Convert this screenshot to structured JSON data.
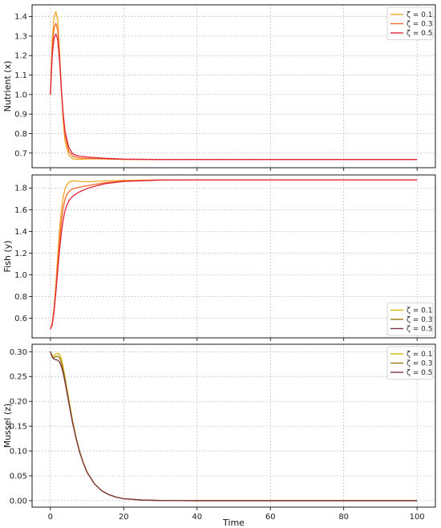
{
  "chart_data": [
    {
      "type": "line",
      "ylabel": "Nutrient (x)",
      "xlim": [
        -5,
        105
      ],
      "ylim": [
        0.625,
        1.46
      ],
      "yticks": [
        0.7,
        0.8,
        0.9,
        1.0,
        1.1,
        1.2,
        1.3,
        1.4
      ],
      "ytick_labels": [
        "0.7",
        "0.8",
        "0.9",
        "1.0",
        "1.1",
        "1.2",
        "1.3",
        "1.4"
      ],
      "grid": true,
      "legend_position": "top-right",
      "series": [
        {
          "name": "ζ = 0.1",
          "color": "#f5a623",
          "x": [
            0,
            0.5,
            1,
            1.5,
            2,
            2.5,
            3,
            3.5,
            4,
            5,
            6,
            7,
            8,
            10,
            12,
            15,
            20,
            30,
            40,
            50,
            60,
            70,
            80,
            90,
            100
          ],
          "y": [
            1.0,
            1.28,
            1.4,
            1.425,
            1.38,
            1.22,
            1.02,
            0.86,
            0.76,
            0.69,
            0.672,
            0.668,
            0.668,
            0.67,
            0.671,
            0.67,
            0.668,
            0.667,
            0.667,
            0.667,
            0.667,
            0.667,
            0.667,
            0.667,
            0.667
          ]
        },
        {
          "name": "ζ = 0.3",
          "color": "#f26b2a",
          "x": [
            0,
            0.5,
            1,
            1.5,
            2,
            2.5,
            3,
            3.5,
            4,
            5,
            6,
            7,
            8,
            10,
            12,
            15,
            20,
            30,
            40,
            50,
            60,
            70,
            80,
            90,
            100
          ],
          "y": [
            1.0,
            1.24,
            1.34,
            1.365,
            1.33,
            1.2,
            1.03,
            0.89,
            0.79,
            0.71,
            0.685,
            0.678,
            0.675,
            0.673,
            0.672,
            0.67,
            0.668,
            0.667,
            0.667,
            0.667,
            0.667,
            0.667,
            0.667,
            0.667,
            0.667
          ]
        },
        {
          "name": "ζ = 0.5",
          "color": "#e0263b",
          "x": [
            0,
            0.5,
            1,
            1.5,
            2,
            2.5,
            3,
            3.5,
            4,
            5,
            6,
            7,
            8,
            10,
            12,
            15,
            20,
            30,
            40,
            50,
            60,
            70,
            80,
            90,
            100
          ],
          "y": [
            1.0,
            1.2,
            1.29,
            1.31,
            1.28,
            1.17,
            1.02,
            0.9,
            0.81,
            0.73,
            0.698,
            0.688,
            0.684,
            0.68,
            0.677,
            0.673,
            0.669,
            0.667,
            0.667,
            0.667,
            0.667,
            0.667,
            0.667,
            0.667,
            0.667
          ]
        }
      ]
    },
    {
      "type": "line",
      "ylabel": "Fish (y)",
      "xlim": [
        -5,
        105
      ],
      "ylim": [
        0.42,
        1.92
      ],
      "yticks": [
        0.6,
        0.8,
        1.0,
        1.2,
        1.4,
        1.6,
        1.8
      ],
      "ytick_labels": [
        "0.6",
        "0.8",
        "1.0",
        "1.2",
        "1.4",
        "1.6",
        "1.8"
      ],
      "grid": true,
      "legend_position": "bottom-right",
      "series": [
        {
          "name": "ζ = 0.1",
          "color": "#f5a623",
          "x": [
            0,
            0.5,
            1,
            1.5,
            2,
            2.5,
            3,
            3.5,
            4,
            4.5,
            5,
            5.5,
            6,
            7,
            8,
            10,
            12,
            15,
            20,
            30,
            40,
            50,
            60,
            70,
            80,
            90,
            100
          ],
          "y": [
            0.5,
            0.56,
            0.7,
            0.92,
            1.18,
            1.42,
            1.6,
            1.72,
            1.79,
            1.83,
            1.85,
            1.86,
            1.865,
            1.865,
            1.86,
            1.858,
            1.86,
            1.865,
            1.87,
            1.875,
            1.875,
            1.875,
            1.875,
            1.875,
            1.875,
            1.875,
            1.875
          ]
        },
        {
          "name": "ζ = 0.3",
          "color": "#f26b2a",
          "x": [
            0,
            0.5,
            1,
            1.5,
            2,
            2.5,
            3,
            3.5,
            4,
            4.5,
            5,
            5.5,
            6,
            7,
            8,
            10,
            12,
            15,
            20,
            30,
            40,
            50,
            60,
            70,
            80,
            90,
            100
          ],
          "y": [
            0.5,
            0.55,
            0.68,
            0.88,
            1.1,
            1.32,
            1.49,
            1.62,
            1.7,
            1.74,
            1.765,
            1.78,
            1.79,
            1.8,
            1.808,
            1.82,
            1.832,
            1.848,
            1.865,
            1.874,
            1.875,
            1.875,
            1.875,
            1.875,
            1.875,
            1.875,
            1.875
          ]
        },
        {
          "name": "ζ = 0.5",
          "color": "#e0263b",
          "x": [
            0,
            0.5,
            1,
            1.5,
            2,
            2.5,
            3,
            3.5,
            4,
            4.5,
            5,
            5.5,
            6,
            7,
            8,
            10,
            12,
            15,
            20,
            30,
            40,
            50,
            60,
            70,
            80,
            90,
            100
          ],
          "y": [
            0.5,
            0.54,
            0.66,
            0.84,
            1.04,
            1.23,
            1.39,
            1.51,
            1.59,
            1.64,
            1.68,
            1.705,
            1.72,
            1.745,
            1.765,
            1.795,
            1.815,
            1.84,
            1.86,
            1.872,
            1.875,
            1.875,
            1.875,
            1.875,
            1.875,
            1.875,
            1.875
          ]
        }
      ],
      "legend_entries": [
        {
          "name": "ζ = 0.1",
          "color": "#d4b800"
        },
        {
          "name": "ζ = 0.3",
          "color": "#9a7a12"
        },
        {
          "name": "ζ = 0.5",
          "color": "#7a3340"
        }
      ]
    },
    {
      "type": "line",
      "ylabel": "Mussel (z)",
      "xlabel": "Time",
      "xlim": [
        -5,
        105
      ],
      "ylim": [
        -0.013,
        0.315
      ],
      "yticks": [
        0.0,
        0.05,
        0.1,
        0.15,
        0.2,
        0.25,
        0.3
      ],
      "ytick_labels": [
        "0.00",
        "0.05",
        "0.10",
        "0.15",
        "0.20",
        "0.25",
        "0.30"
      ],
      "xticks": [
        0,
        20,
        40,
        60,
        80,
        100
      ],
      "xtick_labels": [
        "0",
        "20",
        "40",
        "60",
        "80",
        "100"
      ],
      "grid": true,
      "legend_position": "top-right",
      "series": [
        {
          "name": "ζ = 0.1",
          "color": "#d4b800",
          "x": [
            0,
            0.5,
            1,
            1.5,
            2,
            2.5,
            3,
            3.5,
            4,
            5,
            6,
            7,
            8,
            9,
            10,
            12,
            14,
            16,
            18,
            20,
            25,
            30,
            35,
            40,
            50,
            60,
            70,
            80,
            90,
            100
          ],
          "y": [
            0.3,
            0.292,
            0.292,
            0.295,
            0.297,
            0.295,
            0.285,
            0.268,
            0.248,
            0.205,
            0.163,
            0.128,
            0.099,
            0.076,
            0.058,
            0.034,
            0.02,
            0.012,
            0.007,
            0.004,
            0.0012,
            0.0004,
            0.0001,
            0.0,
            0.0,
            0.0,
            0.0,
            0.0,
            0.0,
            0.0
          ]
        },
        {
          "name": "ζ = 0.3",
          "color": "#9a7a12",
          "x": [
            0,
            0.5,
            1,
            1.5,
            2,
            2.5,
            3,
            3.5,
            4,
            5,
            6,
            7,
            8,
            9,
            10,
            12,
            14,
            16,
            18,
            20,
            25,
            30,
            35,
            40,
            50,
            60,
            70,
            80,
            90,
            100
          ],
          "y": [
            0.3,
            0.29,
            0.288,
            0.29,
            0.291,
            0.288,
            0.278,
            0.262,
            0.243,
            0.201,
            0.16,
            0.126,
            0.098,
            0.075,
            0.057,
            0.034,
            0.02,
            0.012,
            0.007,
            0.004,
            0.0012,
            0.0004,
            0.0001,
            0.0,
            0.0,
            0.0,
            0.0,
            0.0,
            0.0,
            0.0
          ]
        },
        {
          "name": "ζ = 0.5",
          "color": "#7a3340",
          "x": [
            0,
            0.5,
            1,
            1.5,
            2,
            2.5,
            3,
            3.5,
            4,
            5,
            6,
            7,
            8,
            9,
            10,
            12,
            14,
            16,
            18,
            20,
            25,
            30,
            35,
            40,
            50,
            60,
            70,
            80,
            90,
            100
          ],
          "y": [
            0.3,
            0.289,
            0.285,
            0.284,
            0.283,
            0.279,
            0.27,
            0.256,
            0.238,
            0.198,
            0.158,
            0.125,
            0.097,
            0.075,
            0.057,
            0.034,
            0.02,
            0.012,
            0.007,
            0.004,
            0.0012,
            0.0004,
            0.0001,
            0.0,
            0.0,
            0.0,
            0.0,
            0.0,
            0.0,
            0.0
          ]
        }
      ]
    }
  ]
}
